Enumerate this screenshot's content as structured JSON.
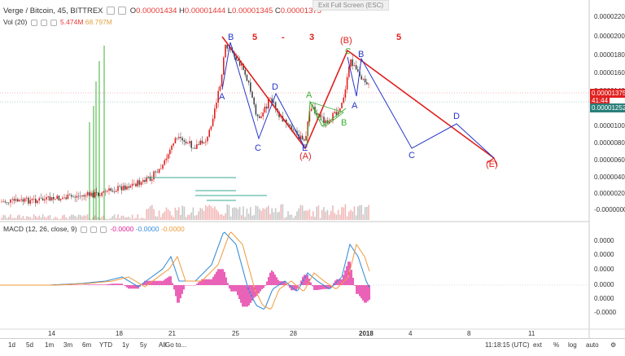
{
  "header": {
    "symbol": "Verge / Bitcoin, 45, BITTREX",
    "open_label": "O",
    "open_value": "0.00001434",
    "high_label": "H",
    "high_value": "0.00001444",
    "low_label": "L",
    "low_value": "0.00001345",
    "close_label": "C",
    "close_value": "0.00001375",
    "exit_fullscreen": "Exit Full Screen (ESC)"
  },
  "volume_legend": {
    "label": "Vol (20)",
    "value1": "5.474M",
    "value2": "68.797M"
  },
  "macd_legend": {
    "label": "MACD (12, 26, close, 9)",
    "value1": "-0.0000",
    "value2": "-0.0000",
    "value3": "-0.0000"
  },
  "price_axis": {
    "ticks": [
      "0.00002200",
      "0.00002000",
      "0.00001800",
      "0.00001600",
      "0.00001400",
      "0.00001200",
      "0.00001000",
      "0.00000800",
      "0.00000600",
      "0.00000400",
      "0.00000200",
      "-0.00000000"
    ],
    "current_price": "0.00001375",
    "countdown": "41:44",
    "other_price": "0.00001252"
  },
  "macd_axis": {
    "ticks": [
      "0.0000",
      "0.0000",
      "0.0000",
      "0.0000",
      "0.0000",
      "-0.0000",
      "-0.0000"
    ]
  },
  "time_axis": {
    "ticks": [
      "14",
      "18",
      "21",
      "25",
      "28",
      "2018",
      "4",
      "8",
      "11"
    ]
  },
  "wave_labels": {
    "top_5a": "5",
    "top_dash": "-",
    "top_3": "3",
    "top_5b": "5",
    "A1": "A",
    "B1": "B",
    "C1": "C",
    "D1": "D",
    "E1": "E",
    "A_paren": "(A)",
    "A2": "A",
    "B2": "B",
    "B_paren": "(B)",
    "C_paren_top": "C",
    "B3": "B",
    "A3": "A",
    "C_right": "C",
    "D_right": "D",
    "E_paren": "(E)"
  },
  "bottom_bar": {
    "timeframes": [
      "1d",
      "5d",
      "1m",
      "3m",
      "6m",
      "YTD",
      "1y",
      "5y",
      "All"
    ],
    "goto": "Go to...",
    "clock": "11:18:15 (UTC)",
    "options": [
      "%",
      "log",
      "auto"
    ],
    "ext": "ext"
  },
  "colors": {
    "red": "#e0201f",
    "blue": "#2636c8",
    "green": "#3cb034",
    "candle_up": "#e0201f",
    "candle_down": "#444444"
  }
}
